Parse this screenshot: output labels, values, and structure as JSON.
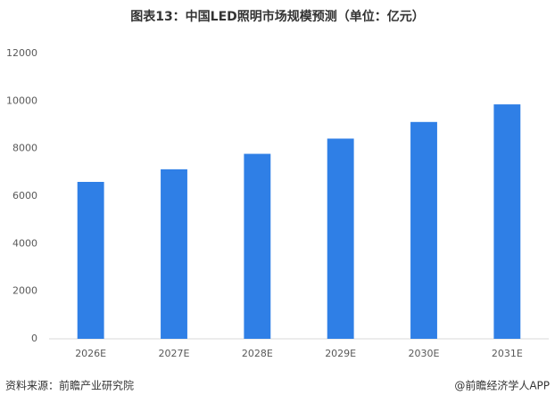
{
  "chart_data": {
    "type": "bar",
    "title": "图表13：中国LED照明市场规模预测（单位：亿元）",
    "categories": [
      "2026E",
      "2027E",
      "2028E",
      "2029E",
      "2030E",
      "2031E"
    ],
    "values": [
      6600,
      7130,
      7780,
      8420,
      9120,
      9860
    ],
    "color": "#2f7fe6",
    "ylim": [
      0,
      12000
    ],
    "yticks": [
      0,
      2000,
      4000,
      6000,
      8000,
      10000,
      12000
    ],
    "grid": false
  },
  "footer": {
    "source": "资料来源：前瞻产业研究院",
    "brand": "@前瞻经济学人APP"
  }
}
